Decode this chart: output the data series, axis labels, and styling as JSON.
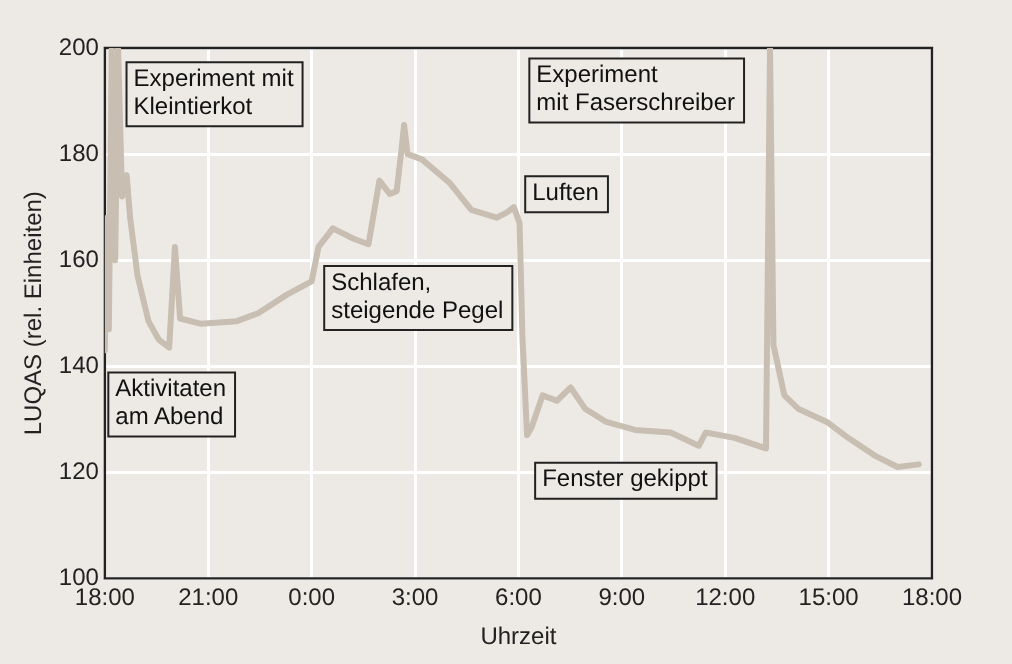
{
  "chart_data": {
    "type": "line",
    "xlabel": "Uhrzeit",
    "ylabel": "LUQAS (rel. Einheiten)",
    "xlim": [
      "--01-01T18:00",
      "--01-02T18:00"
    ],
    "xticks": [
      {
        "value": "--01-01T18:00",
        "label": "18:00"
      },
      {
        "value": "--01-01T21:00",
        "label": "21:00"
      },
      {
        "value": "--01-02T00:00",
        "label": "0:00"
      },
      {
        "value": "--01-02T03:00",
        "label": "3:00"
      },
      {
        "value": "--01-02T06:00",
        "label": "6:00"
      },
      {
        "value": "--01-02T09:00",
        "label": "9:00"
      },
      {
        "value": "--01-02T12:00",
        "label": "12:00"
      },
      {
        "value": "--01-02T15:00",
        "label": "15:00"
      },
      {
        "value": "--01-02T18:00",
        "label": "18:00"
      }
    ],
    "ylim": [
      100,
      200
    ],
    "yticks": [
      100,
      120,
      140,
      160,
      180,
      200
    ],
    "grid": true,
    "legend": false,
    "marker": "none",
    "line_style": "solid",
    "series": [
      {
        "color": "#c8bfb2",
        "x": [
          "--01-01T18:00",
          "--01-01T18:04",
          "--01-01T18:07",
          "--01-01T18:12",
          "--01-01T18:18",
          "--01-01T18:23",
          "--01-01T18:30",
          "--01-01T18:38",
          "--01-01T18:44",
          "--01-01T18:57",
          "--01-01T19:16",
          "--01-01T19:34",
          "--01-01T19:52",
          "--01-01T20:02",
          "--01-01T20:11",
          "--01-01T20:48",
          "--01-01T21:50",
          "--01-01T22:27",
          "--01-01T23:17",
          "--01-02T00:00",
          "--01-02T00:12",
          "--01-02T00:37",
          "--01-02T01:14",
          "--01-02T01:39",
          "--01-02T01:58",
          "--01-02T02:16",
          "--01-02T02:28",
          "--01-02T02:35",
          "--01-02T02:41",
          "--01-02T02:47",
          "--01-02T03:12",
          "--01-02T04:01",
          "--01-02T04:38",
          "--01-02T05:22",
          "--01-02T05:40",
          "--01-02T05:52",
          "--01-02T06:02",
          "--01-02T06:07",
          "--01-02T06:15",
          "--01-02T06:23",
          "--01-02T06:42",
          "--01-02T07:07",
          "--01-02T07:31",
          "--01-02T07:56",
          "--01-02T08:33",
          "--01-02T09:23",
          "--01-02T10:25",
          "--01-02T11:14",
          "--01-02T11:26",
          "--01-02T12:16",
          "--01-02T13:11",
          "--01-02T13:18",
          "--01-02T13:24",
          "--01-02T13:43",
          "--01-02T14:07",
          "--01-02T14:57",
          "--01-02T15:34",
          "--01-02T16:23",
          "--01-02T17:00",
          "--01-02T17:37"
        ],
        "values": [
          143,
          168,
          147,
          200,
          160,
          200,
          172,
          176,
          168,
          157,
          148.5,
          145,
          143.5,
          162.5,
          149,
          148,
          148.5,
          150,
          153.5,
          156,
          162.5,
          166,
          164,
          163,
          175,
          172.5,
          173,
          179.5,
          185.5,
          180,
          179,
          174.5,
          169.5,
          168,
          169,
          170,
          167,
          145.5,
          127,
          128.5,
          134.5,
          133.5,
          136,
          132,
          129.5,
          128,
          127.5,
          125,
          127.5,
          126.5,
          124.5,
          200,
          144,
          134.5,
          132,
          129.5,
          126.5,
          123,
          121,
          121.5
        ]
      }
    ],
    "annotations": [
      "Experiment mit\nKleintierkot",
      "Aktivitaten\nam Abend",
      "Schlafen,\nsteigende Pegel",
      "Luften",
      "Fenster gekippt",
      "Experiment\nmit Faserschreiber"
    ]
  }
}
